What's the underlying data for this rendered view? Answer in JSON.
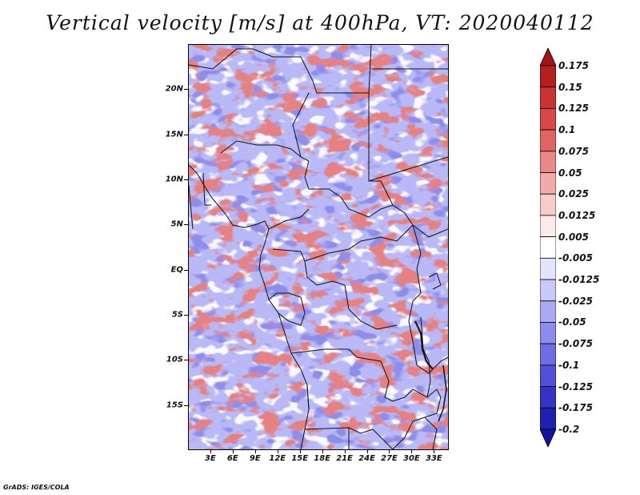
{
  "title": "Vertical velocity [m/s] at 400hPa, VT: 2020040112",
  "credit": "GrADS: IGES/COLA",
  "map": {
    "region": "Central Africa",
    "lon_range": [
      0,
      35
    ],
    "lat_range": [
      -20,
      25
    ],
    "lat_labels": [
      {
        "label": "20N",
        "value": 20
      },
      {
        "label": "15N",
        "value": 15
      },
      {
        "label": "10N",
        "value": 10
      },
      {
        "label": "5N",
        "value": 5
      },
      {
        "label": "EQ",
        "value": 0
      },
      {
        "label": "5S",
        "value": -5
      },
      {
        "label": "10S",
        "value": -10
      },
      {
        "label": "15S",
        "value": -15
      }
    ],
    "lon_labels": [
      {
        "label": "3E",
        "value": 3
      },
      {
        "label": "6E",
        "value": 6
      },
      {
        "label": "9E",
        "value": 9
      },
      {
        "label": "12E",
        "value": 12
      },
      {
        "label": "15E",
        "value": 15
      },
      {
        "label": "18E",
        "value": 18
      },
      {
        "label": "21E",
        "value": 21
      },
      {
        "label": "24E",
        "value": 24
      },
      {
        "label": "27E",
        "value": 27
      },
      {
        "label": "30E",
        "value": 30
      },
      {
        "label": "33E",
        "value": 33
      }
    ],
    "field_colors": {
      "background": "#b9b9f7",
      "strong_down": "#4646d2",
      "weak_down": "#9696f0",
      "neutral": "#f0f0ff",
      "weak_up": "#f3a8a8",
      "strong_up": "#c83c3c"
    }
  },
  "colorbar": {
    "levels": [
      "0.175",
      "0.15",
      "0.125",
      "0.1",
      "0.075",
      "0.05",
      "0.025",
      "0.0125",
      "0.005",
      "-0.005",
      "-0.0125",
      "-0.025",
      "-0.05",
      "-0.075",
      "-0.1",
      "-0.125",
      "-0.175",
      "-0.2"
    ],
    "colors": [
      "#a01414",
      "#b42020",
      "#c83232",
      "#d84848",
      "#e06464",
      "#ea8888",
      "#f3aaaa",
      "#f8cccc",
      "#fdeaea",
      "#ffffff",
      "#e4e4ff",
      "#c8c8fa",
      "#aaaaf5",
      "#8c8cee",
      "#6e6ee4",
      "#5050d8",
      "#3434c4",
      "#2020b0",
      "#14149a"
    ]
  }
}
